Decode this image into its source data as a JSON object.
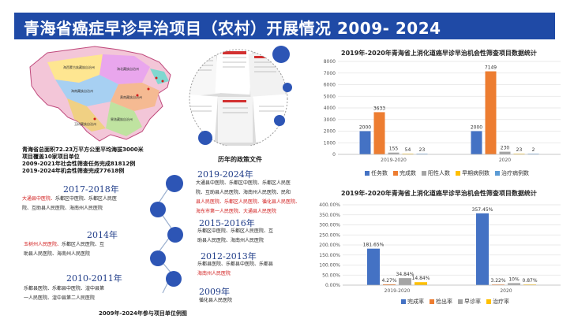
{
  "header": {
    "title": "青海省癌症早诊早治项目（农村）开展情况  2009- 2024"
  },
  "map_stats": [
    "青海省总面积72.23万平方公里平均海拔3000米",
    "项目覆盖10家项目单位",
    "2009-2021年社会性筛查任务完成81812例",
    "2019-2024年机会性筛查完成77618例"
  ],
  "docs_caption": "历年的政策文件",
  "timeline_caption": "2009年-2024年参与项目单位例图",
  "timeline_left": [
    {
      "year": "2017-2018年",
      "lines": [
        "大通县中医院、乐都区中医院、乐都区人民医",
        "院、互助县人民医院、海南州人民医院"
      ],
      "red_prefix": "大通县中医院、"
    },
    {
      "year": "2014年",
      "lines": [
        "玉树州人民医院、乐都区人民医院、互",
        "助县人民医院、海南州人民医院"
      ],
      "red_prefix": "玉树州人民医院、"
    },
    {
      "year": "2010-2011年",
      "lines": [
        "乐都县医院、乐都县中医院、湟中县第",
        "一人民医院、湟中县第二人民医院"
      ],
      "red_prefix": ""
    }
  ],
  "timeline_right": [
    {
      "year": "2019-2024年",
      "lines": [
        "大通县中医院、乐都区中医院、乐都区人民医",
        "院、互助县人民医院、海南州人民医院、民和",
        "县人民医院、乐都区人民医院、循化县人民医院、",
        "海东市第一人民医院、大通县人民医院"
      ]
    },
    {
      "year": "2015-2016年",
      "lines": [
        "乐都区中医院、乐都区人民医院、互",
        "助县人民医院、海南州人民医院"
      ]
    },
    {
      "year": "2012-2013年",
      "lines": [
        "乐都县医院、乐都县中医院、乐都县",
        "海南州人民医院"
      ]
    },
    {
      "year": "2009年",
      "lines": [
        "循化县人民医院"
      ]
    }
  ],
  "chart_data": [
    {
      "type": "bar",
      "title": "2019年-2020年青海省上消化道癌早诊早治机会性筛查项目数据统计",
      "categories": [
        "2019-2020",
        "2020"
      ],
      "series": [
        {
          "name": "任务数",
          "color": "#4472c4",
          "values": [
            2000,
            2000
          ]
        },
        {
          "name": "完成数",
          "color": "#ed7d31",
          "values": [
            3633,
            7149
          ]
        },
        {
          "name": "阳性人数",
          "color": "#a5a5a5",
          "values": [
            155,
            230
          ]
        },
        {
          "name": "早期病例数",
          "color": "#ffc000",
          "values": [
            54,
            23
          ]
        },
        {
          "name": "治疗病例数",
          "color": "#5b9bd5",
          "values": [
            23,
            2
          ]
        }
      ],
      "ylim": [
        0,
        8000
      ],
      "yticks": [
        0,
        1000,
        2000,
        3000,
        4000,
        5000,
        6000,
        7000,
        8000
      ],
      "data_labels": [
        [
          "2000",
          "3633",
          "155",
          "54",
          "23"
        ],
        [
          "2000",
          "7149",
          "230",
          "23",
          "2"
        ]
      ],
      "legend_position": "bottom",
      "grid": true
    },
    {
      "type": "bar",
      "title": "2019年-2020年青海省上消化道癌早诊早治机会性筛查项目数据统计",
      "categories": [
        "2019-2020",
        "2020"
      ],
      "series": [
        {
          "name": "完成率",
          "color": "#4472c4",
          "values": [
            181.65,
            357.45
          ]
        },
        {
          "name": "检出率",
          "color": "#ed7d31",
          "values": [
            4.27,
            3.22
          ]
        },
        {
          "name": "早诊率",
          "color": "#a5a5a5",
          "values": [
            34.84,
            10
          ]
        },
        {
          "name": "治疗率",
          "color": "#ffc000",
          "values": [
            14.84,
            0.87
          ]
        }
      ],
      "ylim": [
        0,
        400
      ],
      "yticks": [
        "0.00%",
        "50.00%",
        "100.00%",
        "150.00%",
        "200.00%",
        "250.00%",
        "300.00%",
        "350.00%",
        "400.00%"
      ],
      "data_labels": [
        [
          "181.65%",
          "4.27%",
          "34.84%",
          "14.84%"
        ],
        [
          "357.45%",
          "3.22%",
          "10%",
          "0.87%"
        ]
      ],
      "legend_position": "bottom",
      "grid": true
    }
  ]
}
